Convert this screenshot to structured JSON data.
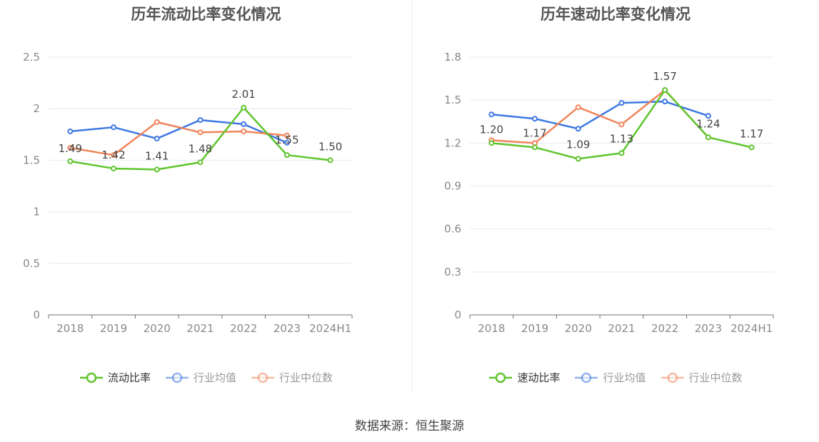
{
  "source_text": "数据来源：恒生聚源",
  "chart_data": [
    {
      "type": "line",
      "title": "历年流动比率变化情况",
      "categories": [
        "2018",
        "2019",
        "2020",
        "2021",
        "2022",
        "2023",
        "2024H1"
      ],
      "ylim": [
        0,
        2.5
      ],
      "yticks": [
        "0",
        "0.5",
        "1",
        "1.5",
        "2",
        "2.5"
      ],
      "grid": true,
      "legend_position": "bottom",
      "series": [
        {
          "name": "流动比率",
          "color": "#5fc52e",
          "values": [
            1.49,
            1.42,
            1.41,
            1.48,
            2.01,
            1.55,
            1.5
          ],
          "labels": [
            "1.49",
            "1.42",
            "1.41",
            "1.48",
            "2.01",
            "1.55",
            "1.50"
          ],
          "legend_text_color": "#333333"
        },
        {
          "name": "行业均值",
          "color": "#3d78e3",
          "values": [
            1.78,
            1.82,
            1.71,
            1.89,
            1.85,
            1.67,
            null
          ],
          "legend_text_color": "#999999"
        },
        {
          "name": "行业中位数",
          "color": "#f0855a",
          "values": [
            1.62,
            1.55,
            1.87,
            1.77,
            1.78,
            1.74,
            null
          ],
          "legend_text_color": "#999999"
        }
      ]
    },
    {
      "type": "line",
      "title": "历年速动比率变化情况",
      "categories": [
        "2018",
        "2019",
        "2020",
        "2021",
        "2022",
        "2023",
        "2024H1"
      ],
      "ylim": [
        0,
        1.8
      ],
      "yticks": [
        "0",
        "0.3",
        "0.6",
        "0.9",
        "1.2",
        "1.5",
        "1.8"
      ],
      "grid": true,
      "legend_position": "bottom",
      "series": [
        {
          "name": "速动比率",
          "color": "#5fc52e",
          "values": [
            1.2,
            1.17,
            1.09,
            1.13,
            1.57,
            1.24,
            1.17
          ],
          "labels": [
            "1.20",
            "1.17",
            "1.09",
            "1.13",
            "1.57",
            "1.24",
            "1.17"
          ],
          "legend_text_color": "#333333"
        },
        {
          "name": "行业均值",
          "color": "#3d78e3",
          "values": [
            1.4,
            1.37,
            1.3,
            1.48,
            1.49,
            1.39,
            null
          ],
          "legend_text_color": "#999999"
        },
        {
          "name": "行业中位数",
          "color": "#f0855a",
          "values": [
            1.22,
            1.2,
            1.45,
            1.33,
            1.57,
            1.24,
            null
          ],
          "legend_text_color": "#999999"
        }
      ]
    }
  ]
}
